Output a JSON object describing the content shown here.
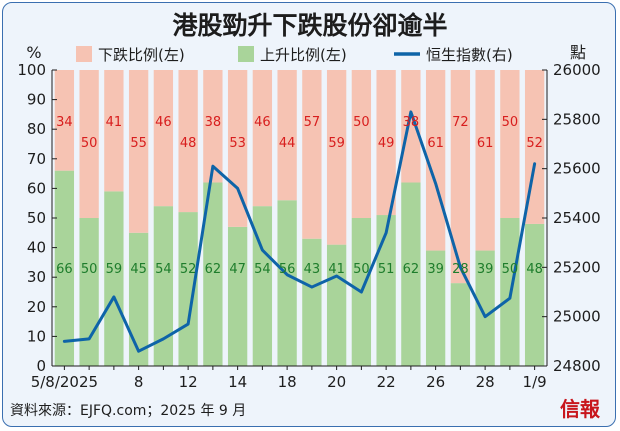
{
  "chart_data": {
    "type": "bar",
    "title": "港股勁升下跌股份卻逾半",
    "left_unit": "%",
    "right_unit": "點",
    "source": "資料來源：EJFQ.com；2025 年 9 月",
    "logo": "信報",
    "left_axis": {
      "range": [
        0,
        100
      ],
      "ticks": [
        0,
        10,
        20,
        30,
        40,
        50,
        60,
        70,
        80,
        90,
        100
      ]
    },
    "right_axis": {
      "range": [
        24800,
        26000
      ],
      "ticks": [
        24800,
        25000,
        25200,
        25400,
        25600,
        25800,
        26000
      ]
    },
    "categories": [
      "5/8/2025",
      "",
      "",
      "8",
      "",
      "12",
      "",
      "14",
      "",
      "18",
      "",
      "20",
      "",
      "22",
      "",
      "26",
      "",
      "28",
      "",
      "1/9"
    ],
    "x_tick_labels": [
      "5/8/2025",
      "8",
      "12",
      "14",
      "18",
      "20",
      "22",
      "26",
      "28",
      "1/9"
    ],
    "series": [
      {
        "name": "下跌比例(左)",
        "color": "#f6c3b3",
        "label_color": "#d81e1e",
        "values": [
          34,
          50,
          41,
          55,
          46,
          48,
          38,
          53,
          46,
          44,
          57,
          59,
          50,
          49,
          38,
          61,
          72,
          61,
          50,
          52
        ]
      },
      {
        "name": "上升比例(左)",
        "color": "#a9d49a",
        "label_color": "#1e7d2c",
        "values": [
          66,
          50,
          59,
          45,
          54,
          52,
          62,
          47,
          54,
          56,
          43,
          41,
          50,
          51,
          62,
          39,
          28,
          39,
          50,
          48
        ]
      },
      {
        "name": "恒生指數(右)",
        "color": "#0e64a8",
        "type": "line",
        "values": [
          24900,
          24910,
          25080,
          24860,
          24910,
          24970,
          25610,
          25520,
          25270,
          25170,
          25120,
          25165,
          25100,
          25340,
          25830,
          25540,
          25200,
          25000,
          25075,
          25620
        ]
      }
    ],
    "up_display_labels": [
      66,
      50,
      59,
      45,
      54,
      52,
      62,
      47,
      54,
      56,
      43,
      41,
      50,
      51,
      62,
      39,
      28,
      39,
      50,
      48
    ],
    "grid": false,
    "legend_position": "top"
  }
}
